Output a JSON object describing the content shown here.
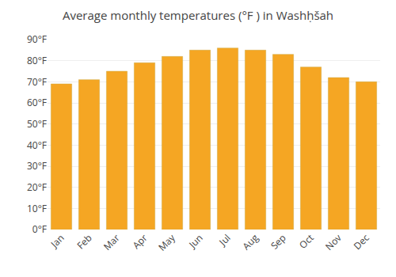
{
  "chart_data": {
    "type": "bar",
    "title": "Average monthly temperatures (°F ) in Washḥšah",
    "categories": [
      "Jan",
      "Feb",
      "Mar",
      "Apr",
      "May",
      "Jun",
      "Jul",
      "Aug",
      "Sep",
      "Oct",
      "Nov",
      "Dec"
    ],
    "values": [
      69,
      71,
      75,
      79,
      82,
      85,
      86,
      85,
      83,
      77,
      72,
      70
    ],
    "color": "#F5A623",
    "ylim": [
      0,
      90
    ],
    "yticks": [
      {
        "value": 0,
        "label": "0°F"
      },
      {
        "value": 10,
        "label": "10°F"
      },
      {
        "value": 20,
        "label": "20°F"
      },
      {
        "value": 30,
        "label": "30°F"
      },
      {
        "value": 40,
        "label": "40°F"
      },
      {
        "value": 50,
        "label": "50°F"
      },
      {
        "value": 60,
        "label": "60°F"
      },
      {
        "value": 70,
        "label": "70°F"
      },
      {
        "value": 80,
        "label": "80°F"
      },
      {
        "value": 90,
        "label": "90°F"
      }
    ],
    "grid": true
  }
}
